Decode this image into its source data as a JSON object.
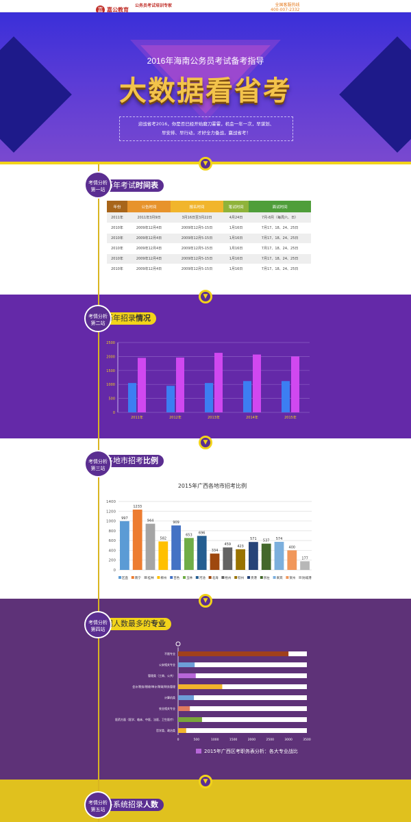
{
  "header": {
    "logo_text": "嘉公教育",
    "logo_sub": "jiagongjy.com",
    "slogan": "公务员考试培训专家",
    "hotline_label": "全国客服热线",
    "hotline_number": "400-007-2332"
  },
  "hero": {
    "subtitle": "2016年海南公务员考试备考指导",
    "title": "大数据看省考",
    "intro_line1": "迎战省考2016，你是否已经开始磨刀霍霍，机会一年一次，早谋划、",
    "intro_line2": "早安排、早行动，才好全力备战，赢战省考！"
  },
  "sections": [
    {
      "badge_line1": "考情分析",
      "badge_line2": "第一站",
      "title_pre": "历年考试",
      "title_bold": "时间表"
    },
    {
      "badge_line1": "考情分析",
      "badge_line2": "第二站",
      "title_pre": "历年招录",
      "title_bold": "情况"
    },
    {
      "badge_line1": "考情分析",
      "badge_line2": "第三站",
      "title_pre": "各地市招考",
      "title_bold": "比例"
    },
    {
      "badge_line1": "考情分析",
      "badge_line2": "第四站",
      "title_pre": "招人数最多的",
      "title_bold": "专业"
    },
    {
      "badge_line1": "考情分析",
      "badge_line2": "第五站",
      "title_pre": "各系统招录",
      "title_bold": "人数"
    }
  ],
  "arrow_glyph": "▼",
  "schedule": {
    "headers": [
      "年份",
      "公告时间",
      "报名时间",
      "笔试时间",
      "面试时间"
    ],
    "header_colors": [
      "#a8651a",
      "#e7932c",
      "#f1b52c",
      "#8fb33a",
      "#4f9e3a"
    ],
    "rows": [
      [
        "2011年",
        "2011年3月9日",
        "3月16日至3月22日",
        "4月24日",
        "7月-8月（每周六、日）"
      ],
      [
        "2010年",
        "2009年12月4日",
        "2009年12月5-15日",
        "1月16日",
        "7月17、18、24、25日"
      ],
      [
        "2010年",
        "2009年12月4日",
        "2009年12月5-15日",
        "1月16日",
        "7月17、18、24、25日"
      ],
      [
        "2010年",
        "2009年12月4日",
        "2009年12月5-15日",
        "1月16日",
        "7月17、18、24、25日"
      ],
      [
        "2010年",
        "2009年12月4日",
        "2009年12月5-15日",
        "1月16日",
        "7月17、18、24、25日"
      ],
      [
        "2010年",
        "2009年12月4日",
        "2009年12月5-15日",
        "1月16日",
        "7月17、18、24、25日"
      ]
    ]
  },
  "chart_data": [
    {
      "type": "bar",
      "title": "",
      "categories": [
        "2011年",
        "2012年",
        "2013年",
        "2014年",
        "2015年"
      ],
      "series": [
        {
          "name": "series-1",
          "color": "#3c7ef2",
          "values": [
            1050,
            950,
            1050,
            1120,
            1120
          ]
        },
        {
          "name": "series-2",
          "color": "#d048f0",
          "values": [
            1950,
            1960,
            2130,
            2070,
            2000
          ]
        }
      ],
      "ylim": [
        0,
        2500
      ],
      "yticks": [
        0,
        500,
        1000,
        1500,
        2000,
        2500
      ]
    },
    {
      "type": "bar",
      "title": "2015年广西各地市招考比例",
      "categories": [
        "区直",
        "南宁",
        "桂林",
        "柳州",
        "百色",
        "玉林",
        "河池",
        "北海",
        "梧州",
        "钦州",
        "贵港",
        "崇左",
        "来宾",
        "贺州",
        "防城港"
      ],
      "values": [
        997,
        1233,
        944,
        582,
        909,
        653,
        696,
        334,
        459,
        423,
        571,
        537,
        574,
        400,
        177
      ],
      "colors": [
        "#5b9bd5",
        "#ed7d31",
        "#a5a5a5",
        "#ffc000",
        "#4472c4",
        "#70ad47",
        "#255e91",
        "#9e480e",
        "#636363",
        "#997300",
        "#264478",
        "#43682b",
        "#7cafdd",
        "#f1975a",
        "#b7b7b7"
      ],
      "ylim": [
        0,
        1400
      ],
      "yticks": [
        0,
        200,
        400,
        600,
        800,
        1000,
        1200,
        1400
      ]
    },
    {
      "type": "bar",
      "orientation": "horizontal",
      "title": "2015年广西区考职务表分析：各大专业战比",
      "categories": [
        "不限专业",
        "公安相关专业",
        "管理类（工商、公共）",
        "会计/税务/税收/审计/财政/财务管理",
        "计算机类",
        "农业相关专业",
        "医药方面（医学、临床、中医、法医、卫生医疗）",
        "哲学类、政治类"
      ],
      "values": [
        3000,
        450,
        480,
        1200,
        430,
        320,
        650,
        220
      ],
      "colors": [
        "#a0401c",
        "#6d9ed8",
        "#b766d8",
        "#f1b52c",
        "#6d9ed8",
        "#e07a5f",
        "#7aa63a",
        "#f1b52c"
      ],
      "xlim": [
        0,
        3500
      ],
      "xticks": [
        0,
        500,
        1000,
        1500,
        2000,
        2500,
        3000,
        3500
      ]
    }
  ]
}
